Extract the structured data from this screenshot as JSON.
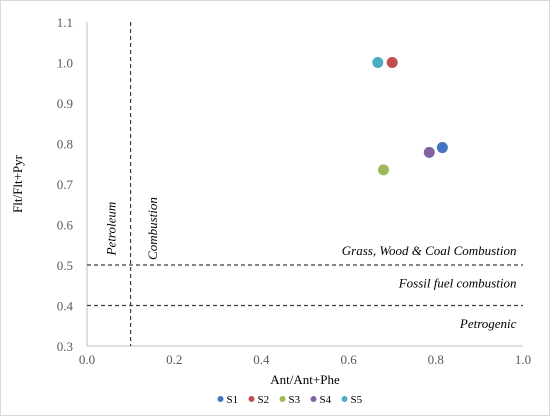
{
  "chart_data": {
    "type": "scatter",
    "xlabel": "Ant/Ant+Phe",
    "ylabel": "Flt/Flt+Pyr",
    "xlim": [
      0,
      1.0
    ],
    "ylim": [
      0.3,
      1.1
    ],
    "xticks": [
      0,
      0.2,
      0.4,
      0.6,
      0.8,
      1.0
    ],
    "yticks": [
      0.3,
      0.4,
      0.5,
      0.6,
      0.7,
      0.8,
      0.9,
      1.0,
      1.1
    ],
    "xtick_labels": [
      "0.0",
      "0.2",
      "0.4",
      "0.6",
      "0.8",
      "1.0"
    ],
    "ytick_labels": [
      "0.3",
      "0.4",
      "0.5",
      "0.6",
      "0.7",
      "0.8",
      "0.9",
      "1.0",
      "1.1"
    ],
    "grid": false,
    "legend_position": "bottom",
    "series": [
      {
        "name": "S1",
        "color": "#4472c4",
        "x": 0.815,
        "y": 0.79
      },
      {
        "name": "S2",
        "color": "#c0504d",
        "x": 0.7,
        "y": 1.0
      },
      {
        "name": "S3",
        "color": "#9bbb59",
        "x": 0.68,
        "y": 0.735
      },
      {
        "name": "S4",
        "color": "#8064a2",
        "x": 0.785,
        "y": 0.778
      },
      {
        "name": "S5",
        "color": "#4bacc6",
        "x": 0.667,
        "y": 1.0
      }
    ],
    "reference_lines": [
      {
        "axis": "x",
        "value": 0.1
      },
      {
        "axis": "y",
        "value": 0.5
      },
      {
        "axis": "y",
        "value": 0.4
      }
    ],
    "annotations": [
      {
        "text": "Petroleum",
        "rotated": true,
        "x": 0.065,
        "y": 0.59
      },
      {
        "text": "Combustion",
        "rotated": true,
        "x": 0.16,
        "y": 0.59
      },
      {
        "text": "Grass, Wood & Coal Combustion",
        "rotated": false,
        "x": 0.985,
        "y": 0.525
      },
      {
        "text": "Fossil fuel combustion",
        "rotated": false,
        "x": 0.985,
        "y": 0.445
      },
      {
        "text": "Petrogenic",
        "rotated": false,
        "x": 0.985,
        "y": 0.345
      }
    ]
  }
}
